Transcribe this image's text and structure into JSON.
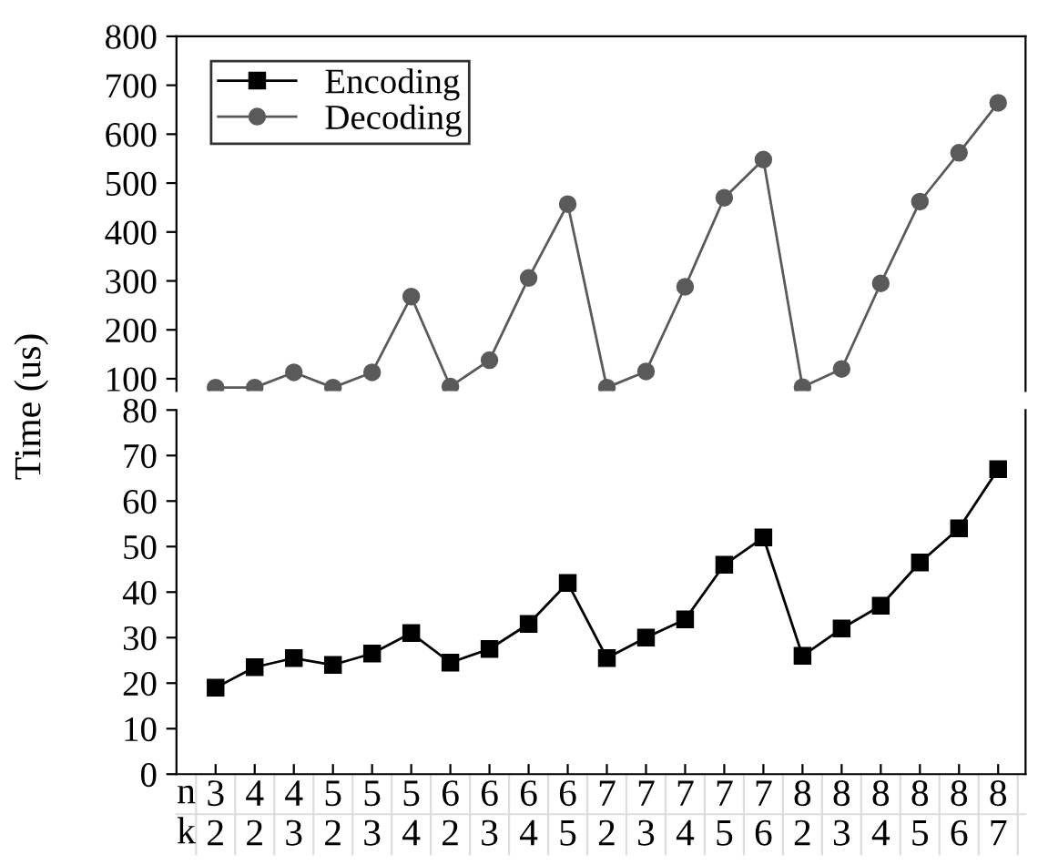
{
  "chart_data": [
    {
      "type": "line",
      "ylabel": "Time (us)",
      "categories": [
        null,
        null,
        null,
        null,
        null,
        null,
        null,
        null,
        null,
        null,
        null,
        null,
        null,
        null,
        null,
        null,
        null,
        null,
        null,
        null,
        null
      ],
      "series": [
        {
          "name": "Decoding",
          "color": "#5a5a5a",
          "marker": "circle",
          "values": [
            82,
            82,
            113,
            82,
            113,
            268,
            84,
            138,
            306,
            457,
            82,
            115,
            288,
            470,
            548,
            83,
            120,
            295,
            462,
            562,
            664
          ]
        }
      ],
      "ylim": [
        75,
        800
      ],
      "yticks": [
        100,
        200,
        300,
        400,
        500,
        600,
        700,
        800
      ],
      "tick_labels": "y",
      "legend": "top left",
      "grid": false
    },
    {
      "type": "line",
      "categories": [
        "3\n2",
        "4\n2",
        "4\n3",
        "5\n2",
        "5\n3",
        "5\n4",
        "6\n2",
        "6\n3",
        "6\n4",
        "6\n5",
        "7\n2",
        "7\n3",
        "7\n4",
        "7\n5",
        "7\n6",
        "8\n2",
        "8\n3",
        "8\n4",
        "8\n5",
        "8\n6",
        "8\n7"
      ],
      "series": [
        {
          "name": "Encoding",
          "color": "#000000",
          "marker": "square",
          "values": [
            19,
            23.5,
            25.5,
            24,
            26.5,
            31,
            24.5,
            27.5,
            33,
            42,
            25.5,
            30,
            34,
            46,
            52,
            26,
            32,
            37,
            46.5,
            54,
            67
          ]
        }
      ],
      "ylim": [
        0,
        80
      ],
      "yticks": [
        0,
        10,
        20,
        30,
        40,
        50,
        60,
        70,
        80
      ],
      "annotations": [
        "n",
        "k"
      ],
      "grid": false
    }
  ]
}
